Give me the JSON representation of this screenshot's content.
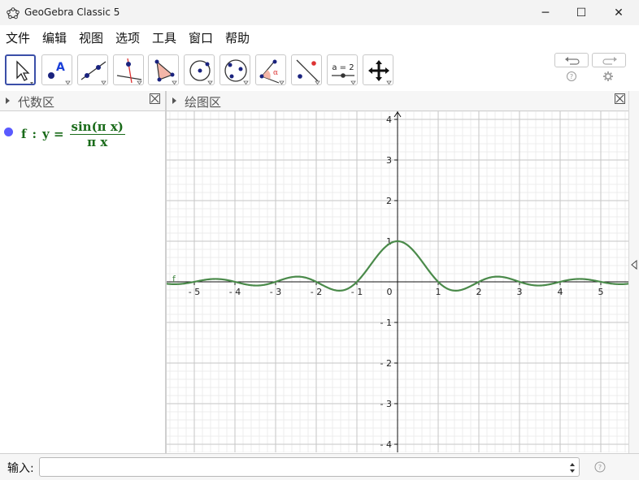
{
  "window": {
    "title": "GeoGebra Classic 5",
    "minimize": "─",
    "maximize": "☐",
    "close": "✕"
  },
  "menu": [
    "文件",
    "编辑",
    "视图",
    "选项",
    "工具",
    "窗口",
    "帮助"
  ],
  "toolbar": {
    "tools": [
      "move-tool",
      "point-tool",
      "line-tool",
      "perpendicular-line-tool",
      "polygon-tool",
      "circle-tool",
      "circle-through-points-tool",
      "angle-tool",
      "reflect-tool",
      "slider-tool",
      "move-graphics-tool"
    ],
    "slider_label": "a = 2",
    "undo_icon": "undo-icon",
    "redo_icon": "redo-icon",
    "help_icon": "help-icon",
    "settings_icon": "settings-icon"
  },
  "algebra": {
    "title": "代数区",
    "object": {
      "name": "f",
      "colon": ":",
      "lhs": "y =",
      "numerator": "sin(π x)",
      "denominator": "π x",
      "color": "#5a5aff"
    }
  },
  "graphics": {
    "title": "绘图区",
    "curve_label": "f",
    "curve_color": "#4a8a4a"
  },
  "input": {
    "label": "输入:",
    "value": ""
  },
  "chart_data": {
    "type": "line",
    "function": "sin(πx)/(πx)",
    "series": [
      {
        "name": "f",
        "x": [
          -5.7,
          -5.5,
          -5,
          -4.5,
          -4,
          -3.5,
          -3,
          -2.5,
          -2,
          -1.5,
          -1,
          -0.5,
          0,
          0.5,
          1,
          1.5,
          2,
          2.5,
          3,
          3.5,
          4,
          4.5,
          5,
          5.5,
          5.7
        ],
        "y": [
          -0.012,
          -0.058,
          0,
          0.071,
          0,
          -0.091,
          0,
          0.127,
          0,
          -0.212,
          0,
          0.637,
          1,
          0.637,
          0,
          -0.212,
          0,
          0.127,
          0,
          -0.091,
          0,
          0.071,
          0,
          -0.058,
          -0.012
        ]
      }
    ],
    "x_ticks": [
      "- 5",
      "- 4",
      "- 3",
      "- 2",
      "- 1",
      "0",
      "1",
      "2",
      "3",
      "4",
      "5"
    ],
    "y_ticks": [
      "4",
      "3",
      "2",
      "1",
      "- 1",
      "- 2",
      "- 3",
      "- 4"
    ],
    "xlim": [
      -5.7,
      5.7
    ],
    "ylim": [
      -4.2,
      4.2
    ],
    "grid": true
  }
}
